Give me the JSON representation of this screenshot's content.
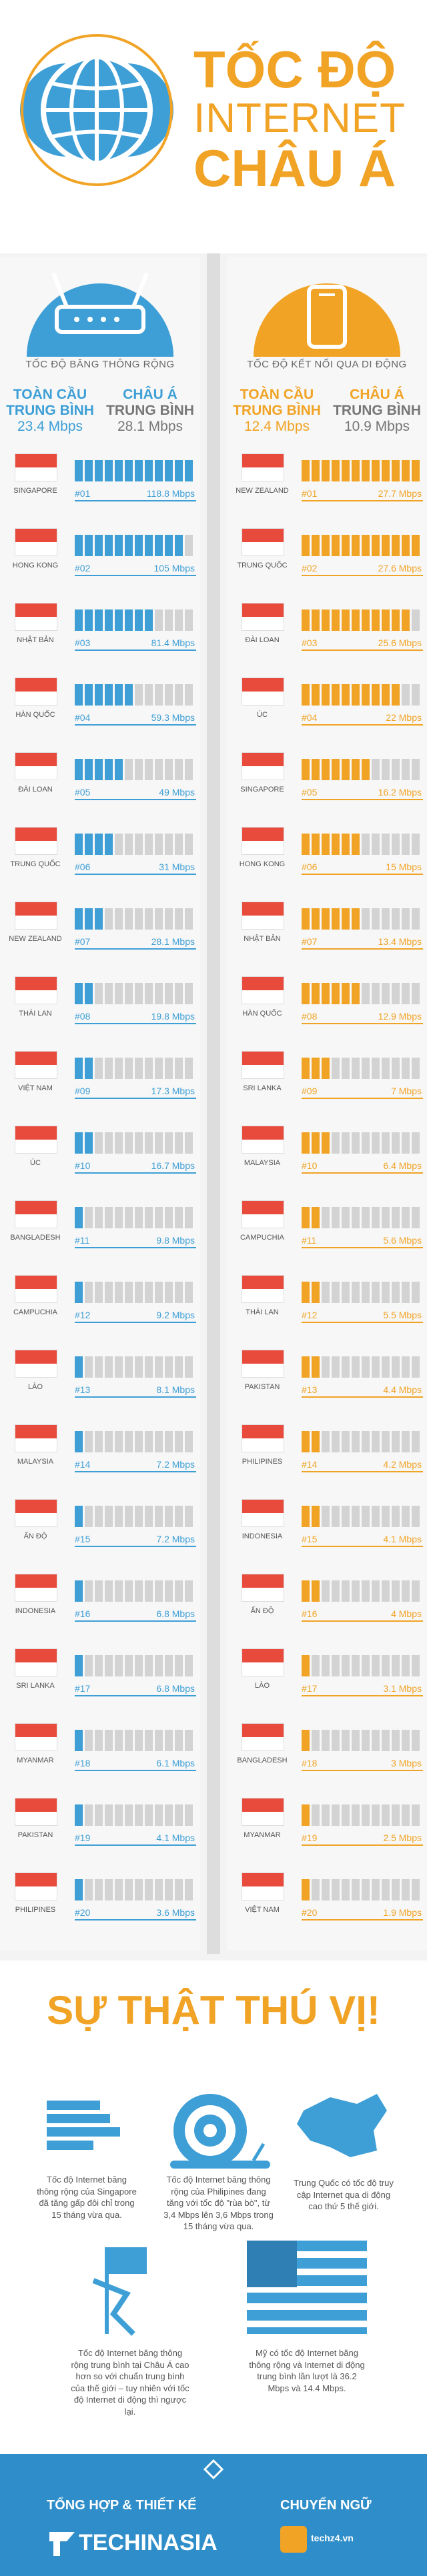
{
  "header": {
    "title_line1": "TỐC ĐỘ",
    "title_line2": "INTERNET",
    "title_line3": "CHÂU Á"
  },
  "broadband": {
    "section_title": "TỐC ĐỘ BĂNG THÔNG RỘNG",
    "global_label_1": "TOÀN CẦU",
    "global_label_2": "TRUNG BÌNH",
    "global_value": "23.4 Mbps",
    "asia_label_1": "CHÂU Á",
    "asia_label_2": "TRUNG BÌNH",
    "asia_value": "28.1 Mbps",
    "rows": [
      {
        "country": "SINGAPORE",
        "rank": "#01",
        "value": "118.8 Mbps",
        "level": 1.0
      },
      {
        "country": "HONG KONG",
        "rank": "#02",
        "value": "105 Mbps",
        "level": 0.9
      },
      {
        "country": "NHẬT BẢN",
        "rank": "#03",
        "value": "81.4 Mbps",
        "level": 0.7
      },
      {
        "country": "HÀN QUỐC",
        "rank": "#04",
        "value": "59.3 Mbps",
        "level": 0.5
      },
      {
        "country": "ĐÀI LOAN",
        "rank": "#05",
        "value": "49 Mbps",
        "level": 0.45
      },
      {
        "country": "TRUNG QUỐC",
        "rank": "#06",
        "value": "31 Mbps",
        "level": 0.3
      },
      {
        "country": "NEW ZEALAND",
        "rank": "#07",
        "value": "28.1 Mbps",
        "level": 0.25
      },
      {
        "country": "THÁI LAN",
        "rank": "#08",
        "value": "19.8 Mbps",
        "level": 0.2
      },
      {
        "country": "VIỆT NAM",
        "rank": "#09",
        "value": "17.3 Mbps",
        "level": 0.17
      },
      {
        "country": "ÚC",
        "rank": "#10",
        "value": "16.7 Mbps",
        "level": 0.16
      },
      {
        "country": "BANGLADESH",
        "rank": "#11",
        "value": "9.8 Mbps",
        "level": 0.1
      },
      {
        "country": "CAMPUCHIA",
        "rank": "#12",
        "value": "9.2 Mbps",
        "level": 0.09
      },
      {
        "country": "LÀO",
        "rank": "#13",
        "value": "8.1 Mbps",
        "level": 0.08
      },
      {
        "country": "MALAYSIA",
        "rank": "#14",
        "value": "7.2 Mbps",
        "level": 0.07
      },
      {
        "country": "ẤN ĐỘ",
        "rank": "#15",
        "value": "7.2 Mbps",
        "level": 0.07
      },
      {
        "country": "INDONESIA",
        "rank": "#16",
        "value": "6.8 Mbps",
        "level": 0.06
      },
      {
        "country": "SRI LANKA",
        "rank": "#17",
        "value": "6.8 Mbps",
        "level": 0.06
      },
      {
        "country": "MYANMAR",
        "rank": "#18",
        "value": "6.1 Mbps",
        "level": 0.06
      },
      {
        "country": "PAKISTAN",
        "rank": "#19",
        "value": "4.1 Mbps",
        "level": 0.04
      },
      {
        "country": "PHILIPINES",
        "rank": "#20",
        "value": "3.6 Mbps",
        "level": 0.03
      }
    ]
  },
  "mobile": {
    "section_title": "TỐC ĐỘ KẾT NỐI QUA DI ĐỘNG",
    "global_label_1": "TOÀN CẦU",
    "global_label_2": "TRUNG BÌNH",
    "global_value": "12.4 Mbps",
    "asia_label_1": "CHÂU Á",
    "asia_label_2": "TRUNG BÌNH",
    "asia_value": "10.9 Mbps",
    "rows": [
      {
        "country": "NEW ZEALAND",
        "rank": "#01",
        "value": "27.7 Mbps",
        "level": 1.0
      },
      {
        "country": "TRUNG QUỐC",
        "rank": "#02",
        "value": "27.6 Mbps",
        "level": 1.0
      },
      {
        "country": "ĐÀI LOAN",
        "rank": "#03",
        "value": "25.6 Mbps",
        "level": 0.92
      },
      {
        "country": "ÚC",
        "rank": "#04",
        "value": "22 Mbps",
        "level": 0.8
      },
      {
        "country": "SINGAPORE",
        "rank": "#05",
        "value": "16.2 Mbps",
        "level": 0.58
      },
      {
        "country": "HONG KONG",
        "rank": "#06",
        "value": "15 Mbps",
        "level": 0.54
      },
      {
        "country": "NHẬT BẢN",
        "rank": "#07",
        "value": "13.4 Mbps",
        "level": 0.48
      },
      {
        "country": "HÀN QUỐC",
        "rank": "#08",
        "value": "12.9 Mbps",
        "level": 0.46
      },
      {
        "country": "SRI LANKA",
        "rank": "#09",
        "value": "7 Mbps",
        "level": 0.25
      },
      {
        "country": "MALAYSIA",
        "rank": "#10",
        "value": "6.4 Mbps",
        "level": 0.23
      },
      {
        "country": "CAMPUCHIA",
        "rank": "#11",
        "value": "5.6 Mbps",
        "level": 0.2
      },
      {
        "country": "THÁI LAN",
        "rank": "#12",
        "value": "5.5 Mbps",
        "level": 0.2
      },
      {
        "country": "PAKISTAN",
        "rank": "#13",
        "value": "4.4 Mbps",
        "level": 0.16
      },
      {
        "country": "PHILIPINES",
        "rank": "#14",
        "value": "4.2 Mbps",
        "level": 0.15
      },
      {
        "country": "INDONESIA",
        "rank": "#15",
        "value": "4.1 Mbps",
        "level": 0.15
      },
      {
        "country": "ẤN ĐỘ",
        "rank": "#16",
        "value": "4 Mbps",
        "level": 0.14
      },
      {
        "country": "LÀO",
        "rank": "#17",
        "value": "3.1 Mbps",
        "level": 0.11
      },
      {
        "country": "BANGLADESH",
        "rank": "#18",
        "value": "3 Mbps",
        "level": 0.11
      },
      {
        "country": "MYANMAR",
        "rank": "#19",
        "value": "2.5 Mbps",
        "level": 0.09
      },
      {
        "country": "VIỆT NAM",
        "rank": "#20",
        "value": "1.9 Mbps",
        "level": 0.07
      }
    ]
  },
  "facts": {
    "title": "SỰ THẬT THÚ VỊ!",
    "fact1": "Tốc độ Internet băng thông rộng của Singapore đã tăng gấp đôi chỉ trong 15 tháng vừa qua.",
    "fact2": "Tốc độ Internet băng thông rộng của Philipines đang tăng với tốc độ \"rùa bò\", từ 3,4 Mbps lên 3,6 Mbps trong 15 tháng vừa qua.",
    "fact3": "Trung Quốc có tốc độ truy cập Internet qua di động cao thứ 5 thế giới.",
    "fact4": "Tốc độ Internet băng thông rộng trung bình tại Châu Á cao hơn so với chuẩn trung bình của thế giới – tuy nhiên với tốc độ Internet di động thì ngược lại.",
    "fact5": "Mỹ có tốc độ Internet băng thông rộng và Internet di động trung bình lần lượt là 36.2 Mbps và 14.4 Mbps."
  },
  "footer": {
    "compiled_label": "TỔNG HỢP & THIẾT KẾ",
    "translated_label": "CHUYỂN NGỮ",
    "brand_1": "TECHINASIA",
    "brand_2": "techz4.vn"
  },
  "colors": {
    "blue": "#3e9fd6",
    "gold": "#f1a325",
    "empty": "#d3d3d3"
  }
}
